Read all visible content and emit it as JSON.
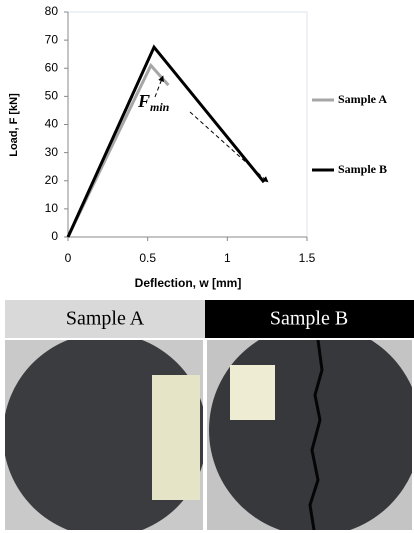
{
  "chart_data": {
    "type": "line",
    "x_label": "Deflection, w [mm]",
    "y_label": "Load, F [kN]",
    "xlim": [
      0,
      1.5
    ],
    "xticks": [
      0,
      0.5,
      1,
      1.5
    ],
    "ylim": [
      0,
      80
    ],
    "yticks": [
      0,
      10,
      20,
      30,
      40,
      50,
      60,
      70,
      80
    ],
    "series": [
      {
        "name": "Sample A",
        "color": "#a6a6a6",
        "x": [
          0,
          0.52,
          0.63
        ],
        "values": [
          0,
          61,
          54
        ]
      },
      {
        "name": "Sample B",
        "color": "#000000",
        "x": [
          0,
          0.54,
          1.23
        ],
        "values": [
          0,
          67.5,
          19.5
        ]
      }
    ],
    "annotations": [
      {
        "text": "F",
        "subscript": "min"
      }
    ]
  },
  "panels": [
    {
      "label": "Sample A"
    },
    {
      "label": "Sample B"
    }
  ]
}
